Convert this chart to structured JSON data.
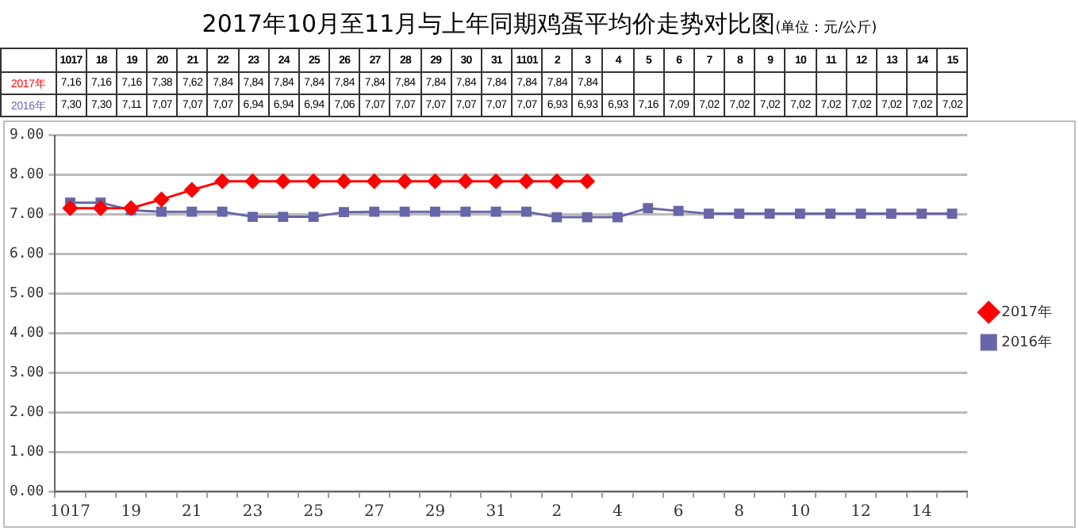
{
  "chart_data": {
    "type": "line",
    "title": "2017年10月至11月与上年同期鸡蛋平均价走势对比图",
    "subtitle": "(单位：元/公斤)",
    "categories": [
      "1017",
      "18",
      "19",
      "20",
      "21",
      "22",
      "23",
      "24",
      "25",
      "26",
      "27",
      "28",
      "29",
      "30",
      "31",
      "1101",
      "2",
      "3",
      "4",
      "5",
      "6",
      "7",
      "8",
      "9",
      "10",
      "11",
      "12",
      "13",
      "14",
      "15"
    ],
    "series": [
      {
        "name": "2017年",
        "color": "#ff0000",
        "marker": "diamond",
        "values": [
          7.16,
          7.16,
          7.16,
          7.38,
          7.62,
          7.84,
          7.84,
          7.84,
          7.84,
          7.84,
          7.84,
          7.84,
          7.84,
          7.84,
          7.84,
          7.84,
          7.84,
          7.84,
          null,
          null,
          null,
          null,
          null,
          null,
          null,
          null,
          null,
          null,
          null,
          null
        ],
        "value_labels": [
          "7,16",
          "7,16",
          "7,16",
          "7,38",
          "7,62",
          "7,84",
          "7,84",
          "7,84",
          "7,84",
          "7,84",
          "7,84",
          "7,84",
          "7,84",
          "7,84",
          "7,84",
          "7,84",
          "7,84",
          "7,84",
          null,
          null,
          null,
          null,
          null,
          null,
          null,
          null,
          null,
          null,
          null,
          null
        ]
      },
      {
        "name": "2016年",
        "color": "#6666a8",
        "marker": "square",
        "values": [
          7.3,
          7.3,
          7.11,
          7.07,
          7.07,
          7.07,
          6.94,
          6.94,
          6.94,
          7.06,
          7.07,
          7.07,
          7.07,
          7.07,
          7.07,
          7.07,
          6.93,
          6.93,
          6.93,
          7.16,
          7.09,
          7.02,
          7.02,
          7.02,
          7.02,
          7.02,
          7.02,
          7.02,
          7.02,
          7.02
        ],
        "value_labels": [
          "7,30",
          "7,30",
          "7,11",
          "7,07",
          "7,07",
          "7,07",
          "6,94",
          "6,94",
          "6,94",
          "7,06",
          "7,07",
          "7,07",
          "7,07",
          "7,07",
          "7,07",
          "7,07",
          "6,93",
          "6,93",
          "6,93",
          "7,16",
          "7,09",
          "7,02",
          "7,02",
          "7,02",
          "7,02",
          "7,02",
          "7,02",
          "7,02",
          "7,02",
          "7,02"
        ]
      }
    ],
    "ylim": [
      0,
      9
    ],
    "yticks": [
      {
        "value": 0,
        "label": "0.00"
      },
      {
        "value": 1,
        "label": "1.00"
      },
      {
        "value": 2,
        "label": "2.00"
      },
      {
        "value": 3,
        "label": "3.00"
      },
      {
        "value": 4,
        "label": "4.00"
      },
      {
        "value": 5,
        "label": "5.00"
      },
      {
        "value": 6,
        "label": "6.00"
      },
      {
        "value": 7,
        "label": "7.00"
      },
      {
        "value": 8,
        "label": "8.00"
      },
      {
        "value": 9,
        "label": "9.00"
      }
    ],
    "grid": "y",
    "legend": "right",
    "line_style": "solid"
  }
}
